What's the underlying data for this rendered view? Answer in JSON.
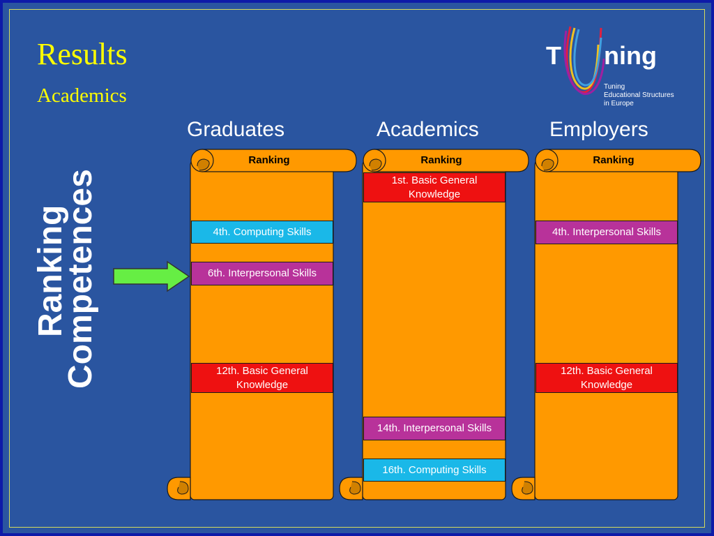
{
  "slide": {
    "title": "Results",
    "subtitle": "Academics",
    "side_label_line1": "Ranking",
    "side_label_line2": "Competences"
  },
  "logo": {
    "word_left": "T",
    "word_right": "ning",
    "tagline_line1": "Tuning",
    "tagline_line2": "Educational Structures",
    "tagline_line3": "in Europe"
  },
  "columns": [
    {
      "heading": "Graduates",
      "scroll_label": "Ranking",
      "items": [
        {
          "text": "4th. Computing Skills",
          "color": "cyan"
        },
        {
          "text": "6th. Interpersonal Skills",
          "color": "magenta"
        },
        {
          "text": "12th. Basic General Knowledge",
          "color": "red"
        }
      ]
    },
    {
      "heading": "Academics",
      "scroll_label": "Ranking",
      "items": [
        {
          "text": "1st. Basic General Knowledge",
          "color": "red"
        },
        {
          "text": "14th. Interpersonal Skills",
          "color": "magenta"
        },
        {
          "text": "16th. Computing Skills",
          "color": "cyan"
        }
      ]
    },
    {
      "heading": "Employers",
      "scroll_label": "Ranking",
      "items": [
        {
          "text": "4th. Interpersonal Skills",
          "color": "magenta"
        },
        {
          "text": "12th. Basic General Knowledge",
          "color": "red"
        }
      ]
    }
  ],
  "colors": {
    "background": "#2a55a0",
    "title": "#ffff00",
    "scroll_fill": "#ff9900",
    "cyan": "#1ab8e8",
    "magenta": "#b8329a",
    "red": "#ee1111",
    "arrow": "#66ee44"
  }
}
